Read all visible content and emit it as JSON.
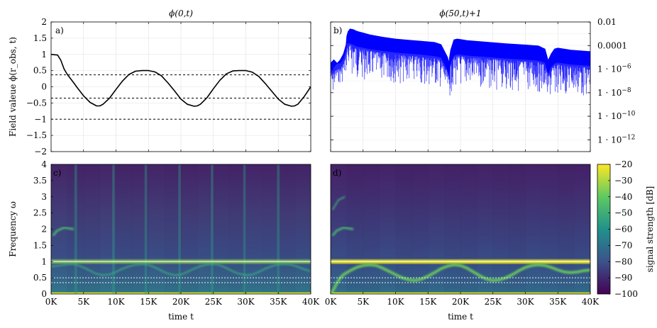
{
  "chart_data": [
    {
      "panel": "a)",
      "type": "line",
      "title": "ϕ(0,t)",
      "ylabel": "Field valeue ϕ(r_obs, t)",
      "xlim": [
        0,
        40000
      ],
      "ylim": [
        -2,
        2
      ],
      "yticks": [
        "2",
        "1.5",
        "1",
        "0.5",
        "0",
        "−0.5",
        "−1",
        "−1.5",
        "−2"
      ],
      "grid": true,
      "series": [
        {
          "color": "#000000",
          "x": [
            0,
            1000,
            1500,
            2000,
            2500,
            3000,
            3500,
            4000,
            5000,
            6000,
            7000,
            7500,
            8000,
            9000,
            10000,
            11000,
            12000,
            13000,
            14000,
            15000,
            16000,
            17000,
            18000,
            19000,
            20000,
            21000,
            22000,
            22500,
            23000,
            24000,
            25000,
            26000,
            27000,
            28000,
            29000,
            30000,
            31000,
            32000,
            33000,
            34000,
            35000,
            36000,
            37000,
            37500,
            38000,
            39000,
            39500,
            40000
          ],
          "y": [
            1.0,
            0.98,
            0.82,
            0.55,
            0.38,
            0.25,
            0.12,
            -0.02,
            -0.28,
            -0.48,
            -0.59,
            -0.59,
            -0.54,
            -0.35,
            -0.08,
            0.18,
            0.38,
            0.48,
            0.5,
            0.5,
            0.46,
            0.34,
            0.12,
            -0.12,
            -0.38,
            -0.54,
            -0.6,
            -0.59,
            -0.54,
            -0.34,
            -0.06,
            0.2,
            0.4,
            0.49,
            0.5,
            0.5,
            0.45,
            0.32,
            0.1,
            -0.14,
            -0.38,
            -0.54,
            -0.6,
            -0.59,
            -0.54,
            -0.3,
            -0.15,
            0.0
          ]
        }
      ],
      "hlines": [
        0.37,
        -0.35,
        -1.0
      ]
    },
    {
      "panel": "b)",
      "type": "line",
      "title": "ϕ(50,t)+1",
      "yscale": "log",
      "xlim": [
        0,
        40000
      ],
      "ylim": [
        1e-13,
        0.01
      ],
      "yticks": [
        "0.01",
        "0.0001",
        "1 · 10^−6",
        "1 · 10^−8",
        "1 · 10^−10",
        "1 · 10^−12"
      ],
      "grid": true,
      "series": [
        {
          "color": "#0000ff",
          "envelope_x": [
            0,
            200,
            500,
            1000,
            1500,
            2000,
            2400,
            2500,
            2700,
            3000,
            3500,
            4000,
            6000,
            8000,
            10000,
            12000,
            14000,
            16000,
            17000,
            18000,
            18200,
            18500,
            19000,
            19500,
            20000,
            21000,
            24000,
            27000,
            30000,
            32000,
            33000,
            33500,
            34000,
            34500,
            35000,
            37000,
            40000
          ],
          "envelope_y": [
            3e-06,
            4e-06,
            6e-06,
            3e-06,
            6e-06,
            2e-05,
            0.00012,
            0.0006,
            0.0015,
            0.0025,
            0.0022,
            0.0016,
            0.0008,
            0.0005,
            0.00035,
            0.00028,
            0.00023,
            0.00018,
            0.00012,
            1e-05,
            3e-06,
            4e-05,
            0.0003,
            0.00035,
            0.00032,
            0.00026,
            0.00019,
            0.00014,
            0.00011,
            9e-05,
            5e-05,
            5e-06,
            2e-05,
            5e-05,
            6e-05,
            4e-05,
            3e-05
          ],
          "floor_y": [
            5e-08,
            3e-09,
            1e-08,
            1e-07,
            5e-08,
            1e-07,
            5e-07,
            1e-06,
            5e-07,
            3e-07,
            2e-07,
            1.5e-07,
            1e-07,
            8e-08,
            6e-08,
            5e-08,
            4e-08,
            3e-08,
            2.5e-08,
            2e-09,
            1e-09,
            1e-08,
            2e-08,
            3e-08,
            3e-08,
            2.5e-08,
            2e-08,
            1.5e-08,
            1.2e-08,
            1e-08,
            8e-09,
            1e-09,
            4e-09,
            6e-09,
            7e-09,
            5e-09,
            4e-09
          ]
        }
      ]
    },
    {
      "panel": "c)",
      "type": "heatmap",
      "xlabel": "time t",
      "ylabel": "Frequency ω",
      "xlim": [
        0,
        40000
      ],
      "ylim": [
        0,
        4
      ],
      "xticks": [
        "0K",
        "5K",
        "10K",
        "15K",
        "20K",
        "25K",
        "30K",
        "35K",
        "40K"
      ],
      "yticks": [
        "4",
        "3.5",
        "3",
        "2.5",
        "2",
        "1.5",
        "1",
        "0.5",
        "0"
      ],
      "hlines": [
        1.0,
        0.5,
        0.35
      ],
      "vertical_streaks_t": [
        3800,
        9600,
        14600,
        19800,
        24800,
        29800,
        35000
      ],
      "branch_x": [
        0,
        1000,
        2000,
        3000,
        4000,
        5000,
        6000,
        7000,
        8000,
        9000,
        10000,
        11000,
        12000,
        13000,
        14000,
        15000,
        16000,
        17000,
        18000,
        19000,
        20000,
        21000,
        22000,
        23000,
        24000,
        25000,
        26000,
        27000,
        28000,
        29000,
        30000,
        31000,
        32000,
        33000,
        34000,
        35000,
        36000,
        37000,
        38000,
        39000,
        40000
      ],
      "branch_y": [
        0.85,
        0.87,
        0.9,
        0.92,
        0.9,
        0.82,
        0.72,
        0.62,
        0.58,
        0.6,
        0.68,
        0.78,
        0.85,
        0.9,
        0.92,
        0.9,
        0.82,
        0.72,
        0.63,
        0.58,
        0.6,
        0.68,
        0.78,
        0.86,
        0.91,
        0.92,
        0.89,
        0.8,
        0.7,
        0.62,
        0.58,
        0.6,
        0.68,
        0.78,
        0.86,
        0.91,
        0.92,
        0.9,
        0.84,
        0.76,
        0.7
      ]
    },
    {
      "panel": "d)",
      "type": "heatmap",
      "xlabel": "time t",
      "xlim": [
        0,
        40000
      ],
      "ylim": [
        0,
        4
      ],
      "xticks": [
        "0K",
        "5K",
        "10K",
        "15K",
        "20K",
        "25K",
        "30K",
        "35K",
        "40K"
      ],
      "hlines": [
        1.0,
        0.5,
        0.35
      ],
      "colorbar": {
        "label": "signal strength [dB]",
        "range": [
          -100,
          -20
        ],
        "ticks": [
          "−20",
          "−30",
          "−40",
          "−50",
          "−60",
          "−70",
          "−80",
          "−90",
          "−100"
        ]
      },
      "branch_x": [
        0,
        500,
        1000,
        1500,
        2000,
        3000,
        4000,
        5000,
        6000,
        7000,
        8000,
        9000,
        10000,
        11000,
        12000,
        13000,
        14000,
        15000,
        16000,
        17000,
        18000,
        19000,
        20000,
        21000,
        22000,
        23000,
        24000,
        25000,
        26000,
        27000,
        28000,
        29000,
        30000,
        31000,
        32000,
        33000,
        34000,
        35000,
        36000,
        37000,
        38000,
        39000,
        40000
      ],
      "branch_y": [
        0.0,
        0.15,
        0.35,
        0.5,
        0.6,
        0.72,
        0.82,
        0.88,
        0.9,
        0.88,
        0.8,
        0.7,
        0.6,
        0.5,
        0.44,
        0.42,
        0.46,
        0.55,
        0.66,
        0.78,
        0.86,
        0.9,
        0.88,
        0.8,
        0.68,
        0.56,
        0.46,
        0.42,
        0.44,
        0.5,
        0.6,
        0.72,
        0.82,
        0.88,
        0.9,
        0.88,
        0.82,
        0.74,
        0.68,
        0.66,
        0.68,
        0.72,
        0.74
      ]
    }
  ]
}
